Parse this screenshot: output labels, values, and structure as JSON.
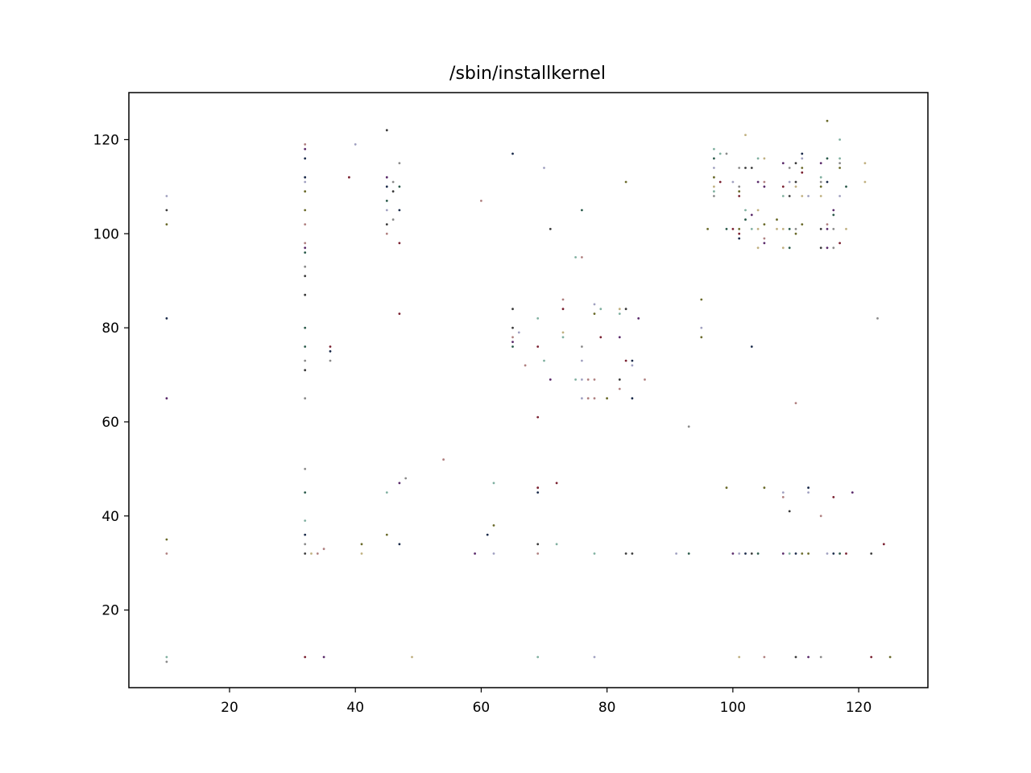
{
  "chart_data": {
    "type": "scatter",
    "title": "/sbin/installkernel",
    "xlabel": "",
    "ylabel": "",
    "xlim": [
      4,
      131
    ],
    "ylim": [
      3.5,
      130
    ],
    "xticks": [
      20,
      40,
      60,
      80,
      100,
      120
    ],
    "yticks": [
      20,
      40,
      60,
      80,
      100,
      120
    ],
    "grid": false,
    "marker_colors": [
      "#1a2a4a",
      "#3a3a3a",
      "#7a2030",
      "#2a5a4a",
      "#6a6a2a",
      "#5a2a6a",
      "#8a8a8a",
      "#b08080",
      "#80b0a0",
      "#a0a0c0",
      "#c0b080"
    ],
    "points": [
      [
        10,
        108
      ],
      [
        10,
        105
      ],
      [
        10,
        102
      ],
      [
        10,
        82
      ],
      [
        10,
        65
      ],
      [
        10,
        35
      ],
      [
        10,
        32
      ],
      [
        10,
        10
      ],
      [
        10,
        9
      ],
      [
        32,
        119
      ],
      [
        32,
        118
      ],
      [
        32,
        116
      ],
      [
        32,
        112
      ],
      [
        32,
        111
      ],
      [
        32,
        109
      ],
      [
        32,
        105
      ],
      [
        32,
        102
      ],
      [
        32,
        98
      ],
      [
        32,
        97
      ],
      [
        32,
        96
      ],
      [
        32,
        93
      ],
      [
        32,
        91
      ],
      [
        32,
        87
      ],
      [
        32,
        80
      ],
      [
        32,
        76
      ],
      [
        32,
        73
      ],
      [
        32,
        71
      ],
      [
        32,
        65
      ],
      [
        32,
        50
      ],
      [
        32,
        45
      ],
      [
        32,
        39
      ],
      [
        32,
        36
      ],
      [
        32,
        34
      ],
      [
        32,
        32
      ],
      [
        32,
        10
      ],
      [
        33,
        32
      ],
      [
        34,
        32
      ],
      [
        35,
        33
      ],
      [
        35,
        10
      ],
      [
        36,
        76
      ],
      [
        36,
        75
      ],
      [
        36,
        73
      ],
      [
        39,
        112
      ],
      [
        40,
        119
      ],
      [
        41,
        34
      ],
      [
        41,
        32
      ],
      [
        45,
        122
      ],
      [
        45,
        112
      ],
      [
        45,
        110
      ],
      [
        45,
        107
      ],
      [
        45,
        105
      ],
      [
        45,
        102
      ],
      [
        45,
        100
      ],
      [
        45,
        45
      ],
      [
        45,
        36
      ],
      [
        46,
        111
      ],
      [
        46,
        109
      ],
      [
        46,
        103
      ],
      [
        47,
        115
      ],
      [
        47,
        110
      ],
      [
        47,
        105
      ],
      [
        47,
        98
      ],
      [
        47,
        83
      ],
      [
        47,
        47
      ],
      [
        47,
        34
      ],
      [
        48,
        48
      ],
      [
        49,
        10
      ],
      [
        54,
        52
      ],
      [
        59,
        32
      ],
      [
        60,
        107
      ],
      [
        61,
        36
      ],
      [
        62,
        47
      ],
      [
        62,
        38
      ],
      [
        62,
        32
      ],
      [
        65,
        117
      ],
      [
        65,
        84
      ],
      [
        65,
        80
      ],
      [
        65,
        78
      ],
      [
        65,
        77
      ],
      [
        65,
        76
      ],
      [
        66,
        79
      ],
      [
        67,
        72
      ],
      [
        69,
        82
      ],
      [
        69,
        76
      ],
      [
        69,
        61
      ],
      [
        69,
        46
      ],
      [
        69,
        45
      ],
      [
        69,
        34
      ],
      [
        69,
        32
      ],
      [
        69,
        10
      ],
      [
        70,
        114
      ],
      [
        70,
        73
      ],
      [
        71,
        101
      ],
      [
        71,
        69
      ],
      [
        72,
        47
      ],
      [
        72,
        34
      ],
      [
        73,
        86
      ],
      [
        73,
        84
      ],
      [
        73,
        79
      ],
      [
        73,
        78
      ],
      [
        75,
        95
      ],
      [
        75,
        69
      ],
      [
        76,
        105
      ],
      [
        76,
        95
      ],
      [
        76,
        76
      ],
      [
        76,
        73
      ],
      [
        76,
        69
      ],
      [
        76,
        65
      ],
      [
        77,
        69
      ],
      [
        77,
        65
      ],
      [
        78,
        85
      ],
      [
        78,
        83
      ],
      [
        78,
        69
      ],
      [
        78,
        65
      ],
      [
        78,
        32
      ],
      [
        78,
        10
      ],
      [
        79,
        84
      ],
      [
        79,
        78
      ],
      [
        80,
        65
      ],
      [
        82,
        84
      ],
      [
        82,
        83
      ],
      [
        82,
        78
      ],
      [
        82,
        69
      ],
      [
        82,
        67
      ],
      [
        83,
        111
      ],
      [
        83,
        84
      ],
      [
        83,
        73
      ],
      [
        83,
        32
      ],
      [
        84,
        73
      ],
      [
        84,
        72
      ],
      [
        84,
        65
      ],
      [
        84,
        32
      ],
      [
        85,
        82
      ],
      [
        86,
        69
      ],
      [
        91,
        32
      ],
      [
        93,
        59
      ],
      [
        93,
        32
      ],
      [
        95,
        86
      ],
      [
        95,
        80
      ],
      [
        95,
        78
      ],
      [
        96,
        101
      ],
      [
        97,
        118
      ],
      [
        97,
        116
      ],
      [
        97,
        114
      ],
      [
        97,
        112
      ],
      [
        97,
        110
      ],
      [
        97,
        109
      ],
      [
        97,
        108
      ],
      [
        98,
        117
      ],
      [
        98,
        111
      ],
      [
        99,
        117
      ],
      [
        99,
        101
      ],
      [
        99,
        46
      ],
      [
        100,
        111
      ],
      [
        100,
        101
      ],
      [
        100,
        32
      ],
      [
        101,
        114
      ],
      [
        101,
        110
      ],
      [
        101,
        109
      ],
      [
        101,
        108
      ],
      [
        101,
        101
      ],
      [
        101,
        100
      ],
      [
        101,
        99
      ],
      [
        101,
        32
      ],
      [
        101,
        10
      ],
      [
        102,
        121
      ],
      [
        102,
        114
      ],
      [
        102,
        105
      ],
      [
        102,
        103
      ],
      [
        102,
        32
      ],
      [
        103,
        114
      ],
      [
        103,
        104
      ],
      [
        103,
        101
      ],
      [
        103,
        76
      ],
      [
        103,
        32
      ],
      [
        104,
        116
      ],
      [
        104,
        111
      ],
      [
        104,
        105
      ],
      [
        104,
        101
      ],
      [
        104,
        97
      ],
      [
        104,
        32
      ],
      [
        105,
        116
      ],
      [
        105,
        111
      ],
      [
        105,
        110
      ],
      [
        105,
        102
      ],
      [
        105,
        99
      ],
      [
        105,
        98
      ],
      [
        105,
        46
      ],
      [
        105,
        10
      ],
      [
        107,
        103
      ],
      [
        107,
        101
      ],
      [
        108,
        115
      ],
      [
        108,
        110
      ],
      [
        108,
        108
      ],
      [
        108,
        101
      ],
      [
        108,
        97
      ],
      [
        108,
        45
      ],
      [
        108,
        44
      ],
      [
        108,
        32
      ],
      [
        109,
        114
      ],
      [
        109,
        111
      ],
      [
        109,
        108
      ],
      [
        109,
        101
      ],
      [
        109,
        97
      ],
      [
        109,
        41
      ],
      [
        109,
        32
      ],
      [
        110,
        115
      ],
      [
        110,
        111
      ],
      [
        110,
        110
      ],
      [
        110,
        101
      ],
      [
        110,
        100
      ],
      [
        110,
        64
      ],
      [
        110,
        32
      ],
      [
        110,
        10
      ],
      [
        111,
        117
      ],
      [
        111,
        116
      ],
      [
        111,
        114
      ],
      [
        111,
        113
      ],
      [
        111,
        108
      ],
      [
        111,
        102
      ],
      [
        111,
        32
      ],
      [
        112,
        108
      ],
      [
        112,
        46
      ],
      [
        112,
        45
      ],
      [
        112,
        32
      ],
      [
        112,
        10
      ],
      [
        114,
        115
      ],
      [
        114,
        112
      ],
      [
        114,
        111
      ],
      [
        114,
        110
      ],
      [
        114,
        108
      ],
      [
        114,
        101
      ],
      [
        114,
        97
      ],
      [
        114,
        40
      ],
      [
        114,
        10
      ],
      [
        115,
        124
      ],
      [
        115,
        116
      ],
      [
        115,
        111
      ],
      [
        115,
        102
      ],
      [
        115,
        101
      ],
      [
        115,
        97
      ],
      [
        115,
        32
      ],
      [
        116,
        105
      ],
      [
        116,
        104
      ],
      [
        116,
        101
      ],
      [
        116,
        97
      ],
      [
        116,
        44
      ],
      [
        116,
        32
      ],
      [
        117,
        120
      ],
      [
        117,
        116
      ],
      [
        117,
        115
      ],
      [
        117,
        114
      ],
      [
        117,
        108
      ],
      [
        117,
        98
      ],
      [
        117,
        32
      ],
      [
        118,
        110
      ],
      [
        118,
        101
      ],
      [
        118,
        32
      ],
      [
        119,
        45
      ],
      [
        121,
        115
      ],
      [
        121,
        111
      ],
      [
        122,
        32
      ],
      [
        122,
        10
      ],
      [
        123,
        82
      ],
      [
        124,
        34
      ],
      [
        125,
        10
      ]
    ]
  }
}
